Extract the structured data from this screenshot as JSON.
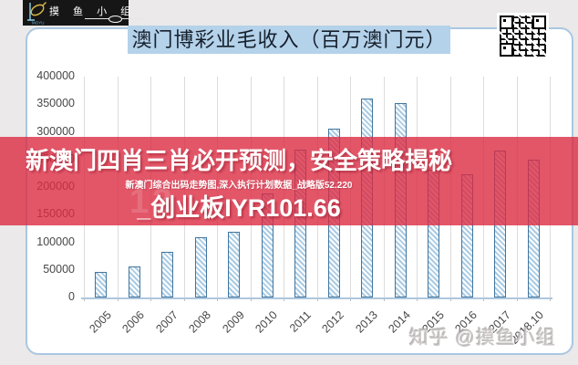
{
  "page": {
    "background": "#ebe9e9"
  },
  "header": {
    "logo": {
      "brand": "摸 鱼 小 组",
      "subtitle": "MOYU"
    },
    "qr": "qr-code"
  },
  "banner": {
    "title": "澳门博彩业毛收入（百万澳门元）",
    "highlight_color": "#b4d2ea"
  },
  "overlay": {
    "line1": "新澳门四肖三肖必开预测，安全策略揭秘",
    "line2": "_创业板IYR101.66",
    "small_watermark": "新澳门综合出码走势图,深入执行计划数据_战略版52.220",
    "faint_watermark": "12",
    "band_color": "#db2c42"
  },
  "footer": {
    "watermark": "知乎 @摸鱼小组"
  },
  "chart_data": {
    "type": "bar",
    "title": "澳门博彩业毛收入（百万澳门元）",
    "unit": "百万澳门元",
    "categories": [
      "2005",
      "2006",
      "2007",
      "2008",
      "2009",
      "2010",
      "2011",
      "2012",
      "2013",
      "2014",
      "2015",
      "2016",
      "2017",
      "2018.10"
    ],
    "values": [
      47000,
      57000,
      83000,
      109000,
      119000,
      188000,
      268000,
      305000,
      360000,
      352000,
      231000,
      223000,
      266000,
      250000
    ],
    "ylim": [
      0,
      400000
    ],
    "ytick_step": 50000,
    "xlabel": "",
    "ylabel": "",
    "legend": "none",
    "grid": "vertical-category-lines",
    "bar_border_color": "#41759e",
    "bar_hatch_color": "#a9cbe4",
    "bar_fill_color": "#ffffff"
  }
}
